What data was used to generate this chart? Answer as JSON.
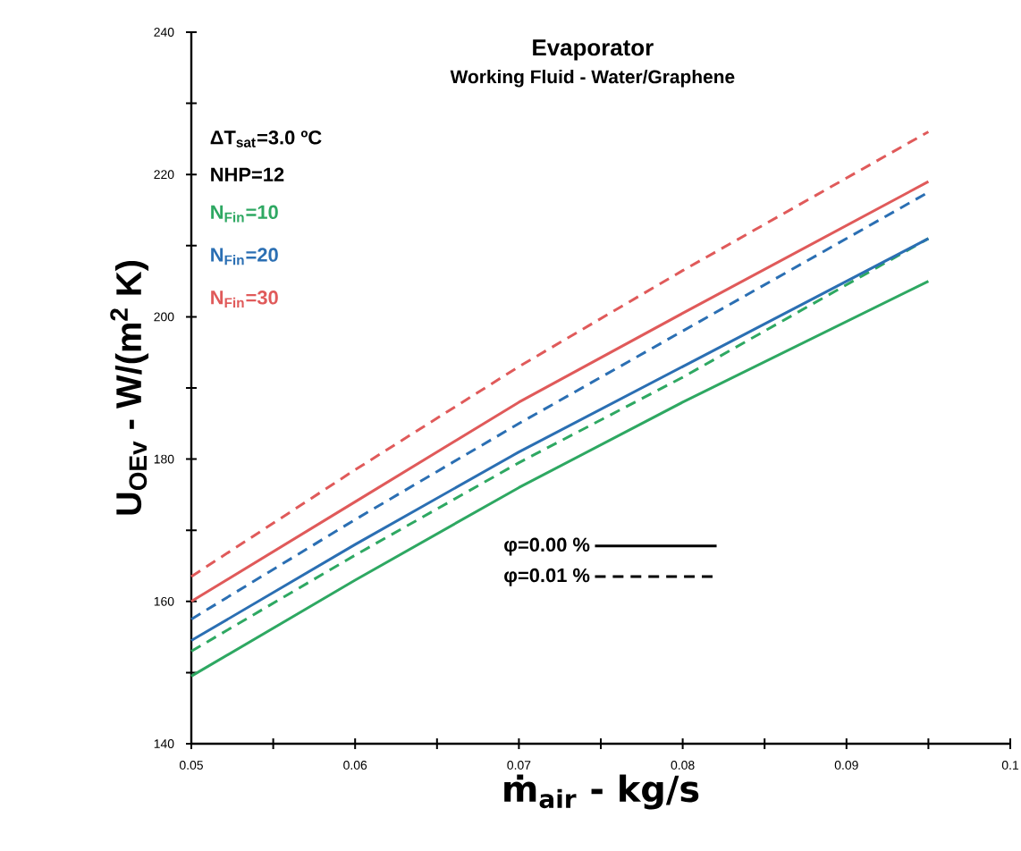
{
  "chart_data": {
    "type": "line",
    "title": "Evaporator",
    "subtitle": "Working Fluid - Water/Graphene",
    "xlabel": "ṁ$_{air}$ - kg/s",
    "ylabel": "U$_{OEv}$ - W/(m$^{2}$ K)",
    "x": [
      0.05,
      0.06,
      0.07,
      0.08,
      0.095
    ],
    "series": [
      {
        "color": "#2ea862",
        "line_style": "solid",
        "values": [
          149.5,
          163,
          176,
          188,
          205
        ]
      },
      {
        "color": "#2ea862",
        "line_style": "dashed",
        "values": [
          153,
          166.5,
          179.5,
          191.5,
          211
        ]
      },
      {
        "color": "#2b6fb3",
        "line_style": "solid",
        "values": [
          154.5,
          168,
          181,
          193,
          211
        ]
      },
      {
        "color": "#2b6fb3",
        "line_style": "dashed",
        "values": [
          157.5,
          171.5,
          185,
          198,
          217.5
        ]
      },
      {
        "color": "#e05a5a",
        "line_style": "solid",
        "values": [
          160,
          174,
          188,
          200.5,
          219
        ]
      },
      {
        "color": "#e05a5a",
        "line_style": "dashed",
        "values": [
          163.5,
          178.5,
          193,
          206.5,
          226
        ]
      }
    ],
    "annotations": [
      "ΔT$_{sat}$=3.0 ºC",
      "NHP=12",
      "N$_{Fin}$=10",
      "N$_{Fin}$=20",
      "N$_{Fin}$=30",
      "φ=0.00 %",
      "φ=0.01 %"
    ],
    "xlim": [
      0.05,
      0.1
    ],
    "ylim": [
      140,
      240
    ],
    "xticks": [
      0.05,
      {
        "value": 0.055,
        "label": null
      },
      0.06,
      {
        "value": 0.065,
        "label": null
      },
      0.07,
      {
        "value": 0.075,
        "label": null
      },
      0.08,
      {
        "value": 0.085,
        "label": null
      },
      0.09,
      {
        "value": 0.095,
        "label": null
      },
      0.1
    ],
    "yticks": [
      140,
      {
        "value": 150,
        "label": null
      },
      160,
      {
        "value": 170,
        "label": null
      },
      180,
      {
        "value": 190,
        "label": null
      },
      200,
      {
        "value": 210,
        "label": null
      },
      220,
      {
        "value": 230,
        "label": null
      },
      240
    ],
    "grid": false,
    "marker": "none"
  }
}
